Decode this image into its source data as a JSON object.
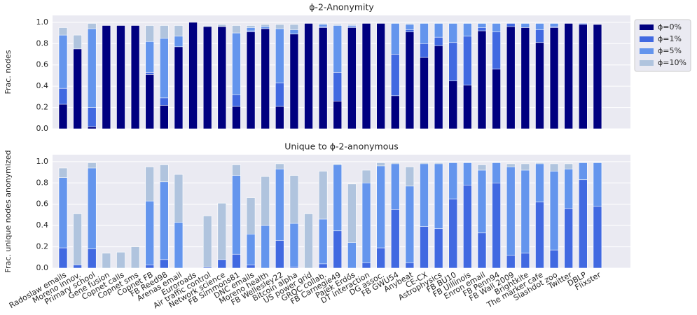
{
  "chart_data": [
    {
      "type": "overlaid-bar",
      "title": "ϕ-2-Anonymity",
      "y_label": "Frac. nodes",
      "ylim": [
        0,
        1.065
      ],
      "yticks": [
        {
          "value": 0,
          "label": "0.0"
        },
        0.2,
        0.4,
        0.6,
        0.8,
        {
          "value": 1,
          "label": "1.0"
        }
      ],
      "grid": true,
      "legend": "outside-right",
      "series": [
        {
          "name": "ϕ=0%",
          "color": "#000080",
          "values": [
            0.23,
            0.75,
            0.02,
            0.97,
            0.97,
            0.97,
            0.51,
            0.22,
            0.77,
            1.0,
            0.96,
            0.96,
            0.21,
            0.91,
            0.94,
            0.21,
            0.89,
            0.99,
            0.95,
            0.26,
            0.95,
            0.99,
            0.99,
            0.31,
            0.91,
            0.67,
            0.78,
            0.45,
            0.41,
            0.92,
            0.56,
            0.96,
            0.95,
            0.81,
            0.95,
            0.99,
            0.98,
            0.98
          ]
        },
        {
          "name": "ϕ=1%",
          "color": "#4169e1",
          "values": [
            0.38,
            0.75,
            0.2,
            0.97,
            0.97,
            0.97,
            0.53,
            0.29,
            0.77,
            1.0,
            0.96,
            0.96,
            0.32,
            0.92,
            0.94,
            0.43,
            0.89,
            0.99,
            0.96,
            0.53,
            0.96,
            0.99,
            0.99,
            0.7,
            0.93,
            0.8,
            0.86,
            0.81,
            0.87,
            0.95,
            0.91,
            0.99,
            0.95,
            0.93,
            0.96,
            0.99,
            0.99,
            0.98
          ]
        },
        {
          "name": "ϕ=5%",
          "color": "#6495ed",
          "values": [
            0.88,
            0.75,
            0.94,
            0.97,
            0.97,
            0.97,
            0.82,
            0.85,
            0.87,
            1.0,
            0.96,
            0.96,
            0.9,
            0.95,
            0.96,
            0.94,
            0.93,
            0.99,
            0.98,
            0.97,
            0.97,
            0.99,
            0.99,
            0.99,
            0.98,
            0.99,
            0.99,
            0.99,
            0.99,
            0.99,
            0.99,
            0.99,
            0.99,
            0.99,
            0.99,
            0.99,
            0.99,
            0.98
          ]
        },
        {
          "name": "ϕ=10%",
          "color": "#b0c4de",
          "values": [
            0.95,
            0.88,
            0.99,
            0.97,
            0.97,
            0.97,
            0.97,
            0.97,
            0.97,
            1.0,
            0.97,
            0.98,
            0.97,
            0.97,
            0.98,
            0.98,
            0.98,
            0.99,
            0.99,
            0.98,
            0.98,
            0.99,
            0.99,
            0.99,
            0.99,
            0.99,
            0.99,
            0.99,
            0.99,
            0.99,
            0.99,
            0.99,
            0.99,
            0.99,
            0.99,
            0.99,
            0.99,
            0.98
          ]
        }
      ]
    },
    {
      "type": "overlaid-bar",
      "title": "Unique to ϕ-2-anonymous",
      "y_label": "Frac. unique nodes anonymized",
      "ylim": [
        0,
        1.065
      ],
      "yticks": [
        {
          "value": 0,
          "label": "0.0"
        },
        0.2,
        0.4,
        0.6,
        0.8,
        {
          "value": 1,
          "label": "1.0"
        }
      ],
      "grid": true,
      "categories": [
        "Radoslaw emails",
        "Moreno innov.",
        "Primary school",
        "Gene fusion",
        "Copnet calls",
        "Copnet sms",
        "Copnet FB",
        "FB Reed98",
        "Arenas email",
        "Euroroads",
        "Air traffic control",
        "Network science",
        "FB Simmons81",
        "DNC emails",
        "Moreno health",
        "FB Wellesley22",
        "Bitcoin alpha",
        "US power grid",
        "GRQC collab.",
        "FB Carnegie49",
        "Pajek Erdős",
        "DT interaction",
        "DG assoc.",
        "FB GWU54",
        "Anybeat",
        "CE-CX",
        "Astrophysics",
        "FB BU10",
        "FB Uillinois",
        "Enron email",
        "FB Penn94",
        "FB Wall 2009",
        "Brightkite",
        "The marker cafe",
        "Slashdot zoo",
        "Twitter",
        "DBLP",
        "Flixster"
      ],
      "series": [
        {
          "color": "#4169e1",
          "values": [
            0.19,
            0.03,
            0.18,
            0,
            0,
            0,
            0.03,
            0.08,
            0,
            0,
            0.01,
            0.08,
            0.13,
            0.03,
            0,
            0.26,
            0.01,
            0,
            0.04,
            0.35,
            0,
            0.05,
            0.19,
            0.55,
            0.05,
            0.39,
            0.37,
            0.65,
            0.78,
            0.33,
            0.8,
            0.12,
            0.14,
            0.62,
            0.17,
            0.56,
            0.83,
            0.58
          ]
        },
        {
          "color": "#6495ed",
          "values": [
            0.85,
            0.03,
            0.94,
            0,
            0,
            0,
            0.63,
            0.81,
            0.43,
            0,
            0.01,
            0.08,
            0.87,
            0.32,
            0.4,
            0.93,
            0.42,
            0,
            0.46,
            0.97,
            0.24,
            0.8,
            0.96,
            0.98,
            0.77,
            0.98,
            0.98,
            0.99,
            0.99,
            0.92,
            0.99,
            0.95,
            0.92,
            0.98,
            0.91,
            0.93,
            0.99,
            0.99
          ]
        },
        {
          "color": "#b0c4de",
          "values": [
            0.94,
            0.51,
            0.99,
            0.14,
            0.15,
            0.2,
            0.95,
            0.97,
            0.88,
            0,
            0.49,
            0.61,
            0.97,
            0.66,
            0.86,
            0.98,
            0.87,
            0.51,
            0.91,
            0.98,
            0.79,
            0.92,
            0.99,
            0.99,
            0.95,
            0.99,
            0.99,
            0.99,
            0.99,
            0.97,
            0.99,
            0.98,
            0.98,
            0.99,
            0.98,
            0.98,
            0.99,
            0.99
          ]
        }
      ]
    }
  ]
}
